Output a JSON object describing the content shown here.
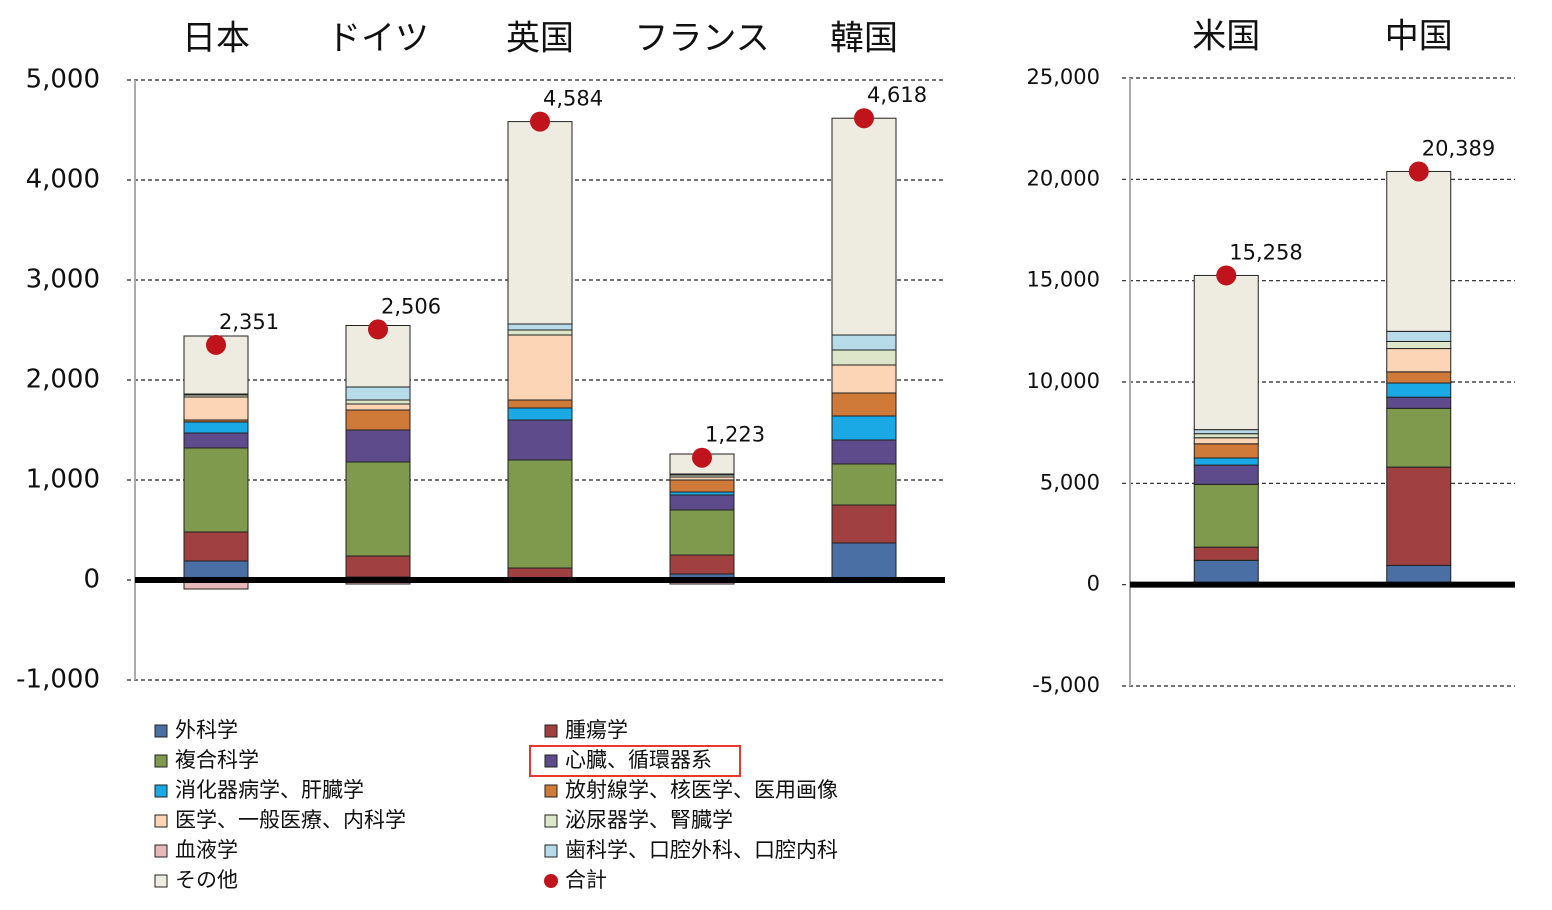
{
  "chart_data": [
    {
      "type": "bar",
      "stacked": true,
      "grid": true,
      "categories": [
        "日本",
        "ドイツ",
        "英国",
        "フランス",
        "韓国"
      ],
      "ylim": [
        -1000,
        5000
      ],
      "yticks": [
        {
          "value": -1000,
          "label": "-1,000"
        },
        0,
        {
          "value": 1000,
          "label": "1,000"
        },
        {
          "value": 2000,
          "label": "2,000"
        },
        {
          "value": 3000,
          "label": "3,000"
        },
        {
          "value": 4000,
          "label": "4,000"
        },
        {
          "value": 5000,
          "label": "5,000"
        }
      ],
      "series": [
        {
          "name": "外科学",
          "color": "#4a6fa5",
          "values": [
            190,
            30,
            20,
            60,
            370
          ]
        },
        {
          "name": "腫瘍学",
          "color": "#a04040",
          "values": [
            290,
            210,
            100,
            190,
            380
          ]
        },
        {
          "name": "複合科学",
          "color": "#7f9a4c",
          "values": [
            840,
            940,
            1080,
            450,
            410
          ]
        },
        {
          "name": "心臓、循環器系",
          "color": "#5e4b8b",
          "values": [
            150,
            320,
            400,
            150,
            240
          ]
        },
        {
          "name": "消化器病学、肝臓学",
          "color": "#1ba9e6",
          "values": [
            110,
            0,
            120,
            30,
            240
          ]
        },
        {
          "name": "放射線学、核医学、医用画像",
          "color": "#d07a3a",
          "values": [
            20,
            200,
            80,
            120,
            230
          ]
        },
        {
          "name": "医学、一般医療、内科学",
          "color": "#fbd5b5",
          "values": [
            230,
            60,
            650,
            30,
            280
          ]
        },
        {
          "name": "泌尿器学、腎臓学",
          "color": "#dde6c8",
          "values": [
            20,
            40,
            50,
            20,
            150
          ]
        },
        {
          "name": "血液学",
          "color": "#e6b8b7",
          "values": [
            -90,
            -40,
            0,
            -40,
            0
          ]
        },
        {
          "name": "歯科学、口腔外科、口腔内科",
          "color": "#b7dbe8",
          "values": [
            10,
            130,
            60,
            10,
            150
          ]
        },
        {
          "name": "その他",
          "color": "#eeebe0",
          "values": [
            580,
            615,
            2024,
            200,
            2168
          ]
        },
        {
          "name": "合計",
          "type": "scatter",
          "color": "#c0141c",
          "values": [
            2351,
            2506,
            4584,
            1223,
            4618
          ],
          "value_labels": [
            "2,351",
            "2,506",
            "4,584",
            "1,223",
            "4,618"
          ]
        }
      ]
    },
    {
      "type": "bar",
      "stacked": true,
      "grid": true,
      "categories": [
        "米国",
        "中国"
      ],
      "ylim": [
        -5000,
        25000
      ],
      "yticks": [
        {
          "value": -5000,
          "label": "-5,000"
        },
        0,
        {
          "value": 5000,
          "label": "5,000"
        },
        {
          "value": 10000,
          "label": "10,000"
        },
        {
          "value": 15000,
          "label": "15,000"
        },
        {
          "value": 20000,
          "label": "20,000"
        },
        {
          "value": 25000,
          "label": "25,000"
        }
      ],
      "series": [
        {
          "color": "#4a6fa5",
          "values": [
            1200,
            950
          ]
        },
        {
          "color": "#a04040",
          "values": [
            650,
            4850
          ]
        },
        {
          "color": "#7f9a4c",
          "values": [
            3100,
            2900
          ]
        },
        {
          "color": "#5e4b8b",
          "values": [
            950,
            550
          ]
        },
        {
          "color": "#1ba9e6",
          "values": [
            350,
            700
          ]
        },
        {
          "color": "#d07a3a",
          "values": [
            700,
            550
          ]
        },
        {
          "color": "#fbd5b5",
          "values": [
            300,
            1150
          ]
        },
        {
          "color": "#dde6c8",
          "values": [
            200,
            350
          ]
        },
        {
          "color": "#e6b8b7",
          "values": [
            0,
            0
          ]
        },
        {
          "color": "#b7dbe8",
          "values": [
            200,
            500
          ]
        },
        {
          "color": "#eeebe0",
          "values": [
            7608,
            7889
          ]
        },
        {
          "type": "scatter",
          "color": "#c0141c",
          "values": [
            15258,
            20389
          ],
          "value_labels": [
            "15,258",
            "20,389"
          ]
        }
      ]
    }
  ]
}
